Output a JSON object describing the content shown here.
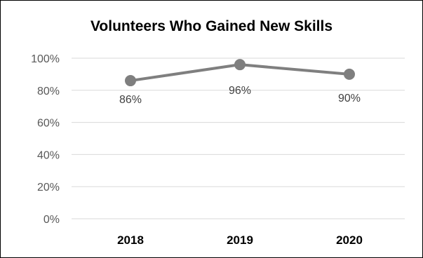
{
  "chart_data": {
    "type": "line",
    "title": "Volunteers Who Gained New Skills",
    "categories": [
      "2018",
      "2019",
      "2020"
    ],
    "values": [
      0.86,
      0.96,
      0.9
    ],
    "data_labels": [
      "86%",
      "96%",
      "90%"
    ],
    "ylim": [
      0,
      1
    ],
    "yticks": [
      {
        "value": 0,
        "label": "0%"
      },
      {
        "value": 0.2,
        "label": "20%"
      },
      {
        "value": 0.4,
        "label": "40%"
      },
      {
        "value": 0.6,
        "label": "60%"
      },
      {
        "value": 0.8,
        "label": "80%"
      },
      {
        "value": 1.0,
        "label": "100%"
      }
    ],
    "grid": true,
    "legend": "none",
    "series_color": "#7f7f7f",
    "grid_color": "#d9d9d9"
  }
}
